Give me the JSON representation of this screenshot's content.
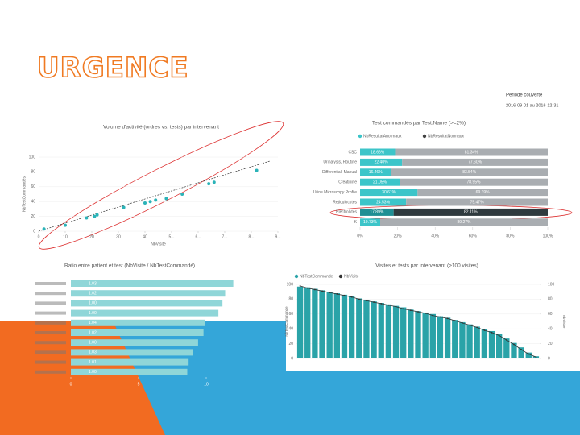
{
  "slide_title": "URGENCE",
  "period": {
    "label": "Période couverte",
    "range": "2016-09-01 au 2016-12-31"
  },
  "chart_data": [
    {
      "type": "scatter",
      "title": "Volume d'activité (ordres vs. tests) par intervenant",
      "x_label": "NbVisite",
      "y_label": "NbTestCommandés",
      "color": "#2bb3b8",
      "x": [
        2,
        10,
        18,
        21,
        22,
        32,
        40,
        42,
        44,
        48,
        54,
        64,
        66,
        82
      ],
      "values": [
        3,
        8,
        18,
        20,
        22,
        32,
        38,
        40,
        42,
        44,
        50,
        64,
        66,
        82
      ],
      "xlim": [
        0,
        90
      ],
      "ylim": [
        0,
        100
      ],
      "xticks": [
        0,
        10,
        20,
        30,
        40,
        {
          "value": 50,
          "label": "5..."
        },
        {
          "value": 60,
          "label": "6..."
        },
        {
          "value": 70,
          "label": "7..."
        },
        {
          "value": 80,
          "label": "8..."
        },
        {
          "value": 90,
          "label": "9..."
        }
      ],
      "yticks": [
        0,
        20,
        40,
        60,
        80,
        100
      ]
    },
    {
      "type": "stacked",
      "title": "Test commandés par Test.Name (>=2%)",
      "categories": [
        "CSC",
        "Urinalysis, Routine",
        "Differential, Manual",
        "Creatinine",
        "Urine Microscopy Profile",
        "Reticulocytes",
        "Electrolytes",
        "K"
      ],
      "highlight": "Electrolytes",
      "series": [
        {
          "name": "NbResultatAnormaux",
          "color": "#3cc5c9",
          "values": [
            18.66,
            22.4,
            16.46,
            21.05,
            30.61,
            24.53,
            17.89,
            10.73
          ],
          "value_labels": [
            "18.66%",
            "22.40%",
            "16.46%",
            "21.05%",
            "30.61%",
            "24.53%",
            "17.89%",
            "10.73%"
          ]
        },
        {
          "name": "NbResultatNormaux",
          "color": "#a9adb1",
          "values": [
            81.34,
            77.6,
            83.54,
            78.95,
            69.39,
            75.47,
            82.11,
            89.27
          ],
          "value_labels": [
            "81.34%",
            "77.60%",
            "83.54%",
            "78.95%",
            "69.39%",
            "75.47%",
            "82.11%",
            "89.27%"
          ]
        }
      ],
      "xlim": [
        0,
        100
      ],
      "xticks": [
        {
          "value": 0,
          "label": "0%"
        },
        {
          "value": 20,
          "label": "20%"
        },
        {
          "value": 40,
          "label": "40%"
        },
        {
          "value": 60,
          "label": "60%"
        },
        {
          "value": 80,
          "label": "80%"
        },
        {
          "value": 100,
          "label": "100%"
        }
      ]
    },
    {
      "type": "hbar",
      "title": "Ratio entre patient et test (NbVisite / NbTestCommandé)",
      "categories": [
        null,
        null,
        null,
        null,
        null,
        null,
        null,
        null,
        null,
        null
      ],
      "values": [
        12.0,
        11.4,
        11.2,
        10.9,
        9.9,
        9.8,
        9.4,
        9.0,
        8.7,
        8.6
      ],
      "data_labels": [
        "1.03",
        "1.02",
        "1.00",
        "1.00",
        "1.04",
        "1.02",
        "1.00",
        "1.03",
        "1.01",
        "1.00"
      ],
      "color": "#8fd6d8",
      "xlim": [
        0,
        13
      ],
      "xticks": [
        0,
        5,
        10
      ]
    },
    {
      "type": "combo",
      "title": "Visites et tests par intervenant (>100 visites)",
      "y_label": "NbTestCommande",
      "y2_label": "NbVisite",
      "series": [
        {
          "name": "NbTestCommande",
          "color": "#2aa3a8",
          "values": [
            97,
            96,
            94,
            92,
            90,
            88,
            86,
            84,
            81,
            79,
            77,
            75,
            73,
            71,
            69,
            66,
            64,
            62,
            60,
            57,
            55,
            52,
            49,
            46,
            43,
            40,
            37,
            33,
            27,
            21,
            15,
            8,
            3
          ]
        },
        {
          "name": "NbVisite",
          "color": "#333333",
          "axis": "y2",
          "values": [
            98,
            95,
            93,
            91,
            89,
            87,
            85,
            83,
            80,
            78,
            76,
            74,
            72,
            70,
            67,
            65,
            63,
            61,
            58,
            56,
            54,
            51,
            48,
            45,
            42,
            38,
            35,
            31,
            25,
            19,
            12,
            6,
            2
          ]
        }
      ],
      "ylim": [
        0,
        100
      ],
      "yticks": [
        0,
        20,
        40,
        60,
        80,
        100
      ],
      "y2lim": [
        0,
        100
      ],
      "y2ticks": [
        0,
        20,
        40,
        60,
        80,
        100
      ]
    }
  ]
}
